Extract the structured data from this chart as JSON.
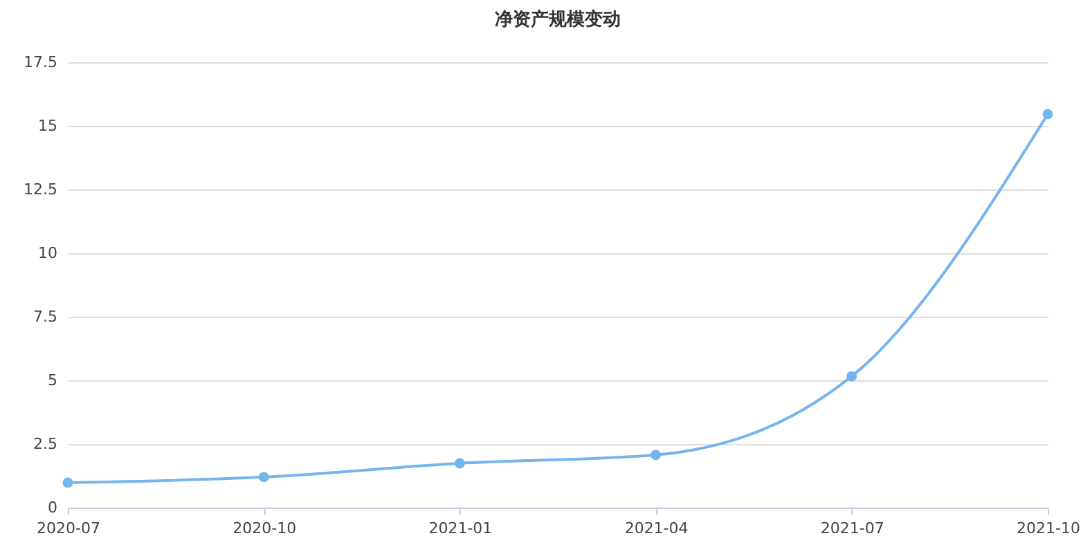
{
  "chart_data": {
    "type": "line",
    "title": "净资产规模变动",
    "categories": [
      "2020-07",
      "2020-10",
      "2021-01",
      "2021-04",
      "2021-07",
      "2021-10"
    ],
    "series": [
      {
        "color": "#76b4ee",
        "values": [
          0.98,
          1.2,
          1.74,
          2.07,
          5.16,
          15.46
        ]
      }
    ],
    "ylim": [
      0,
      17.5
    ],
    "yticks": [
      0,
      2.5,
      5,
      7.5,
      10,
      12.5,
      15,
      17.5
    ],
    "grid": "y",
    "legend": false,
    "marker": "circle",
    "line_style": "solid"
  }
}
